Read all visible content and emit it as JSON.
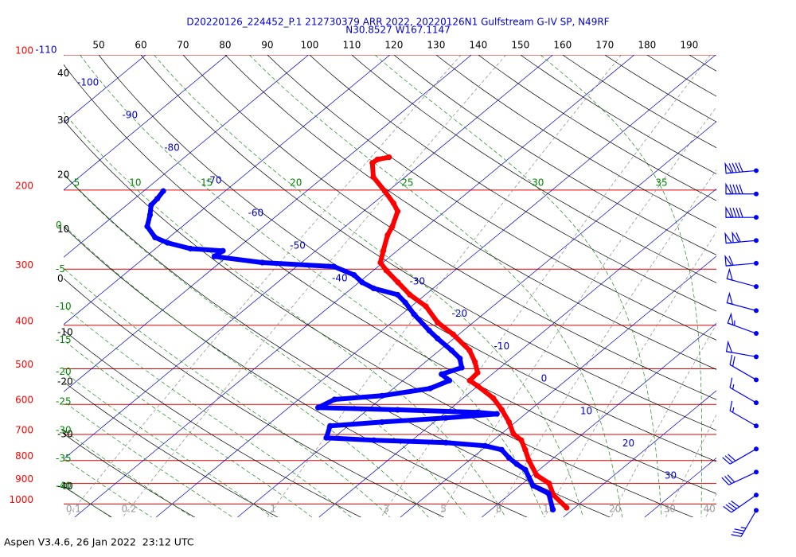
{
  "chart_data": {
    "type": "skewt",
    "title": "D20220126_224452_P.1 212730379 ARR 2022, 20220126N1 Gulfstream G-IV SP, N49RF",
    "subtitle": "N30.8527 W167.1147",
    "ylim": [
      100,
      1070
    ],
    "log_y": true,
    "yticks": [
      100,
      200,
      300,
      400,
      500,
      600,
      700,
      800,
      900,
      1000
    ],
    "isotherms": [
      -110,
      -100,
      -90,
      -80,
      -70,
      -60,
      -50,
      -40,
      -30,
      -20,
      -10,
      0,
      10,
      20,
      30
    ],
    "dry_adiabats": [
      -40,
      -30,
      -20,
      -10,
      0,
      10,
      20,
      30,
      40,
      50,
      60,
      70,
      80,
      90,
      100,
      110,
      120,
      130,
      140,
      150,
      160,
      170,
      180,
      190
    ],
    "moist_adiabats": [
      -40,
      -35,
      -30,
      -25,
      -20,
      -15,
      -10,
      -5,
      0,
      5,
      10,
      15,
      20,
      25,
      30,
      35
    ],
    "mixing_ratios": [
      0.1,
      0.2,
      1,
      3,
      5,
      8,
      12,
      20,
      30,
      40
    ],
    "series": [
      {
        "color": "#ff0000",
        "pressure": [
          1019,
          955,
          899,
          863,
          799,
          757,
          721,
          698,
          657,
          617,
          581,
          546,
          531,
          510,
          483,
          455,
          419,
          394,
          363,
          342,
          321,
          302,
          290,
          273,
          252,
          241,
          223,
          214,
          201,
          187,
          174,
          171,
          169
        ],
        "values": [
          19.0,
          15.5,
          13.2,
          10.5,
          7.3,
          5.3,
          3.4,
          1.5,
          -0.8,
          -3.5,
          -6.3,
          -10.0,
          -11.8,
          -12.0,
          -13.9,
          -16.3,
          -20.7,
          -24.4,
          -28.2,
          -31.9,
          -35.2,
          -38.4,
          -40.3,
          -41.7,
          -43.5,
          -44.2,
          -45.8,
          -47.5,
          -50.4,
          -53.9,
          -56.1,
          -56.0,
          -54.9
        ]
      },
      {
        "color": "#0000ff",
        "pressure": [
          1029,
          948,
          910,
          839,
          815,
          789,
          757,
          742,
          730,
          721,
          712,
          670,
          657,
          643,
          630,
          625,
          617,
          610,
          585,
          574,
          553,
          531,
          514,
          497,
          474,
          455,
          428,
          411,
          378,
          356,
          342,
          331,
          321,
          309,
          296,
          290,
          281,
          273,
          270,
          262,
          255,
          241,
          227,
          216,
          209,
          201
        ],
        "values": [
          17.6,
          14.7,
          11.6,
          8.3,
          6.4,
          4.5,
          2.4,
          -0.2,
          -5.5,
          -14.7,
          -20.9,
          -22.2,
          -16.4,
          -9.2,
          -3.5,
          -6.1,
          -16.3,
          -26.4,
          -25.6,
          -20.3,
          -15.5,
          -14.3,
          -16.2,
          -14.7,
          -16.3,
          -18.5,
          -22.0,
          -24.2,
          -28.5,
          -31.3,
          -33.4,
          -37.3,
          -39.6,
          -41.7,
          -45.4,
          -54.8,
          -61.6,
          -61.4,
          -65.7,
          -69.4,
          -71.7,
          -74.3,
          -75.7,
          -77.0,
          -77.2,
          -77.6
        ]
      }
    ],
    "winds": {
      "color": "#0000ff",
      "pressure": [
        181,
        204,
        230,
        259,
        291,
        328,
        371,
        417,
        470,
        529,
        595,
        670,
        754,
        849,
        955,
        1033
      ],
      "direction": [
        265,
        270,
        270,
        265,
        265,
        285,
        285,
        290,
        280,
        300,
        300,
        300,
        240,
        245,
        235,
        210
      ],
      "speed": [
        90,
        90,
        90,
        110,
        60,
        50,
        50,
        55,
        50,
        20,
        15,
        15,
        30,
        30,
        40,
        35
      ]
    }
  },
  "footer": "Aspen V3.4.6, 26 Jan 2022  23:12 UTC"
}
